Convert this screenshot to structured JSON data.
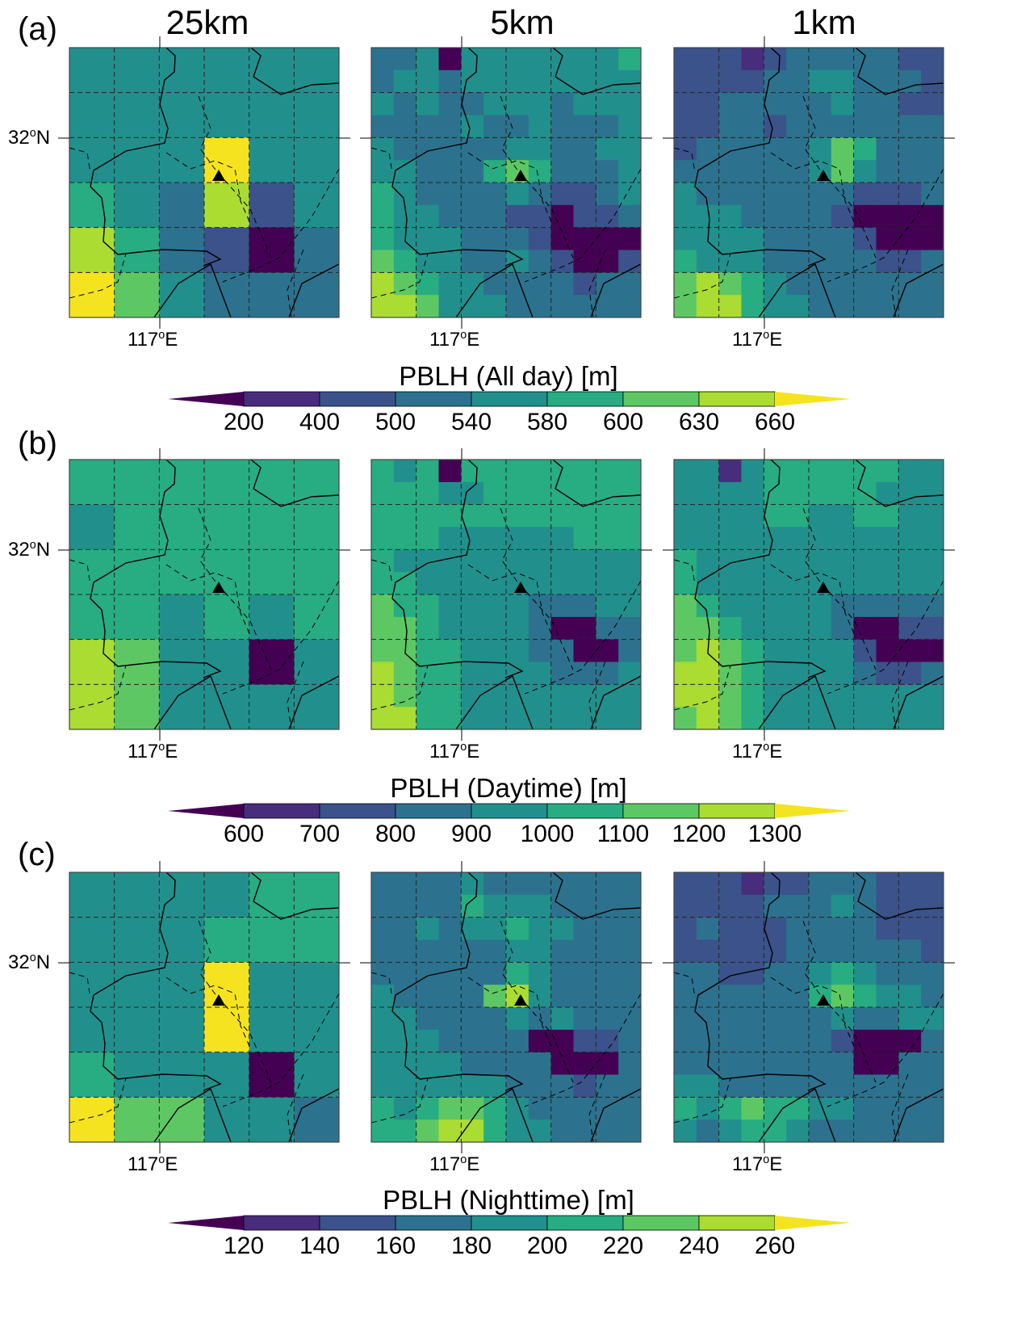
{
  "figure": {
    "row_labels": [
      "(a)",
      "(b)",
      "(c)"
    ],
    "column_titles": [
      "25km",
      "5km",
      "1km"
    ],
    "lat_label": {
      "value": "32",
      "deg": "o",
      "hemi": "N"
    },
    "lon_label": {
      "value": "117",
      "deg": "o",
      "hemi": "E"
    },
    "site_marker": "triangle",
    "colors": [
      "#440154",
      "#472d7b",
      "#3b528b",
      "#2c728e",
      "#21908d",
      "#27ad81",
      "#5dc863",
      "#aadc32",
      "#f5e31f"
    ]
  },
  "colorbars": [
    {
      "title": "PBLH (All day) [m]",
      "ticks": [
        "200",
        "400",
        "500",
        "540",
        "580",
        "600",
        "630",
        "660"
      ]
    },
    {
      "title": "PBLH (Daytime) [m]",
      "ticks": [
        "600",
        "700",
        "800",
        "900",
        "1000",
        "1100",
        "1200",
        "1300"
      ]
    },
    {
      "title": "PBLH (Nighttime) [m]",
      "ticks": [
        "120",
        "140",
        "160",
        "180",
        "200",
        "220",
        "240",
        "260"
      ]
    }
  ],
  "chart_data": [
    {
      "type": "heatmap",
      "row": "(a)",
      "resolution": "25km",
      "grid": [
        [
          4,
          4,
          4,
          4,
          4,
          4
        ],
        [
          4,
          4,
          4,
          4,
          4,
          4
        ],
        [
          4,
          4,
          4,
          8,
          4,
          4
        ],
        [
          5,
          4,
          3,
          7,
          2,
          4
        ],
        [
          7,
          5,
          3,
          2,
          0,
          3
        ],
        [
          8,
          6,
          4,
          3,
          3,
          3
        ]
      ]
    },
    {
      "type": "heatmap",
      "row": "(a)",
      "resolution": "5km",
      "grid": [
        [
          3,
          3,
          4,
          0,
          4,
          4,
          4,
          4,
          4,
          4,
          4,
          5
        ],
        [
          3,
          4,
          4,
          3,
          4,
          4,
          4,
          4,
          4,
          4,
          4,
          4
        ],
        [
          4,
          3,
          4,
          3,
          3,
          4,
          4,
          4,
          3,
          4,
          4,
          4
        ],
        [
          3,
          3,
          3,
          3,
          4,
          3,
          3,
          4,
          3,
          3,
          3,
          4
        ],
        [
          4,
          3,
          3,
          3,
          3,
          3,
          4,
          4,
          3,
          3,
          4,
          4
        ],
        [
          4,
          4,
          3,
          3,
          3,
          5,
          6,
          5,
          3,
          3,
          3,
          4
        ],
        [
          5,
          4,
          3,
          3,
          3,
          3,
          4,
          3,
          2,
          2,
          3,
          4
        ],
        [
          5,
          4,
          4,
          3,
          3,
          3,
          2,
          2,
          0,
          2,
          2,
          3
        ],
        [
          5,
          4,
          4,
          4,
          3,
          3,
          3,
          2,
          0,
          0,
          0,
          0
        ],
        [
          6,
          5,
          4,
          4,
          3,
          3,
          4,
          3,
          2,
          0,
          0,
          2
        ],
        [
          7,
          6,
          5,
          4,
          4,
          3,
          3,
          3,
          3,
          2,
          3,
          3
        ],
        [
          7,
          7,
          6,
          4,
          4,
          4,
          3,
          3,
          3,
          3,
          3,
          3
        ]
      ]
    },
    {
      "type": "heatmap",
      "row": "(a)",
      "resolution": "1km",
      "grid": [
        [
          2,
          2,
          2,
          1,
          2,
          3,
          3,
          3,
          3,
          3,
          2,
          2
        ],
        [
          2,
          2,
          2,
          2,
          3,
          3,
          4,
          4,
          3,
          3,
          3,
          2
        ],
        [
          2,
          2,
          3,
          3,
          3,
          3,
          3,
          4,
          3,
          3,
          2,
          2
        ],
        [
          2,
          2,
          3,
          3,
          2,
          3,
          3,
          3,
          3,
          3,
          3,
          3
        ],
        [
          2,
          3,
          3,
          3,
          3,
          3,
          4,
          6,
          5,
          3,
          3,
          3
        ],
        [
          3,
          3,
          3,
          3,
          3,
          3,
          4,
          6,
          4,
          3,
          3,
          3
        ],
        [
          4,
          3,
          3,
          3,
          3,
          3,
          3,
          3,
          2,
          2,
          2,
          3
        ],
        [
          4,
          4,
          4,
          3,
          3,
          3,
          3,
          2,
          0,
          0,
          0,
          0
        ],
        [
          4,
          4,
          4,
          4,
          3,
          3,
          3,
          3,
          2,
          0,
          0,
          0
        ],
        [
          5,
          4,
          4,
          4,
          3,
          3,
          3,
          3,
          3,
          2,
          2,
          3
        ],
        [
          6,
          7,
          6,
          5,
          4,
          3,
          3,
          3,
          3,
          3,
          3,
          3
        ],
        [
          6,
          7,
          7,
          5,
          4,
          4,
          3,
          3,
          3,
          3,
          3,
          3
        ]
      ]
    },
    {
      "type": "heatmap",
      "row": "(b)",
      "resolution": "25km",
      "grid": [
        [
          5,
          5,
          5,
          5,
          5,
          5
        ],
        [
          4,
          5,
          5,
          5,
          5,
          5
        ],
        [
          5,
          5,
          5,
          5,
          5,
          5
        ],
        [
          5,
          5,
          4,
          5,
          4,
          5
        ],
        [
          7,
          6,
          4,
          4,
          0,
          4
        ],
        [
          7,
          6,
          4,
          4,
          4,
          4
        ]
      ]
    },
    {
      "type": "heatmap",
      "row": "(b)",
      "resolution": "5km",
      "grid": [
        [
          5,
          4,
          5,
          0,
          5,
          5,
          5,
          5,
          5,
          5,
          5,
          5
        ],
        [
          5,
          5,
          5,
          4,
          4,
          5,
          5,
          5,
          5,
          5,
          5,
          5
        ],
        [
          5,
          5,
          5,
          5,
          5,
          5,
          5,
          5,
          5,
          5,
          5,
          5
        ],
        [
          5,
          5,
          5,
          4,
          4,
          4,
          4,
          4,
          4,
          5,
          5,
          5
        ],
        [
          5,
          4,
          4,
          4,
          4,
          4,
          4,
          4,
          4,
          4,
          4,
          4
        ],
        [
          5,
          5,
          4,
          4,
          4,
          4,
          4,
          4,
          4,
          4,
          4,
          4
        ],
        [
          6,
          5,
          5,
          4,
          4,
          4,
          4,
          3,
          3,
          3,
          4,
          4
        ],
        [
          6,
          6,
          5,
          4,
          4,
          4,
          4,
          3,
          0,
          0,
          3,
          3
        ],
        [
          6,
          6,
          5,
          5,
          4,
          4,
          4,
          3,
          3,
          0,
          0,
          3
        ],
        [
          7,
          6,
          5,
          5,
          4,
          4,
          4,
          4,
          3,
          3,
          3,
          4
        ],
        [
          7,
          6,
          5,
          5,
          4,
          4,
          4,
          4,
          4,
          4,
          4,
          4
        ],
        [
          7,
          7,
          5,
          5,
          4,
          4,
          4,
          4,
          4,
          4,
          4,
          4
        ]
      ]
    },
    {
      "type": "heatmap",
      "row": "(b)",
      "resolution": "1km",
      "grid": [
        [
          4,
          4,
          1,
          4,
          5,
          5,
          5,
          5,
          5,
          5,
          4,
          4
        ],
        [
          4,
          4,
          4,
          4,
          5,
          5,
          5,
          5,
          5,
          4,
          4,
          4
        ],
        [
          4,
          4,
          4,
          4,
          5,
          5,
          4,
          4,
          5,
          5,
          4,
          4
        ],
        [
          4,
          4,
          4,
          4,
          4,
          4,
          4,
          4,
          4,
          4,
          4,
          4
        ],
        [
          5,
          4,
          4,
          4,
          4,
          4,
          4,
          4,
          4,
          4,
          4,
          4
        ],
        [
          5,
          4,
          4,
          4,
          4,
          4,
          4,
          4,
          4,
          4,
          4,
          4
        ],
        [
          6,
          5,
          4,
          4,
          4,
          4,
          4,
          3,
          3,
          3,
          3,
          3
        ],
        [
          6,
          6,
          5,
          4,
          4,
          4,
          4,
          3,
          0,
          0,
          2,
          2
        ],
        [
          6,
          7,
          6,
          5,
          4,
          4,
          4,
          4,
          2,
          0,
          0,
          0
        ],
        [
          7,
          7,
          6,
          5,
          4,
          4,
          4,
          4,
          3,
          2,
          2,
          3
        ],
        [
          7,
          7,
          6,
          5,
          4,
          4,
          4,
          4,
          4,
          4,
          4,
          4
        ],
        [
          6,
          7,
          6,
          5,
          4,
          4,
          4,
          4,
          4,
          4,
          4,
          4
        ]
      ]
    },
    {
      "type": "heatmap",
      "row": "(c)",
      "resolution": "25km",
      "grid": [
        [
          4,
          4,
          4,
          4,
          5,
          5
        ],
        [
          4,
          4,
          4,
          5,
          5,
          5
        ],
        [
          4,
          4,
          4,
          8,
          4,
          4
        ],
        [
          4,
          4,
          4,
          8,
          4,
          4
        ],
        [
          5,
          4,
          4,
          4,
          0,
          4
        ],
        [
          8,
          6,
          6,
          4,
          4,
          3
        ]
      ]
    },
    {
      "type": "heatmap",
      "row": "(c)",
      "resolution": "5km",
      "grid": [
        [
          3,
          3,
          3,
          3,
          4,
          3,
          3,
          3,
          3,
          3,
          3,
          3
        ],
        [
          3,
          3,
          3,
          3,
          5,
          4,
          4,
          4,
          3,
          3,
          3,
          3
        ],
        [
          3,
          3,
          4,
          3,
          4,
          4,
          5,
          4,
          4,
          3,
          3,
          3
        ],
        [
          3,
          3,
          3,
          3,
          3,
          3,
          4,
          4,
          3,
          3,
          3,
          3
        ],
        [
          3,
          3,
          3,
          3,
          3,
          3,
          5,
          4,
          3,
          3,
          3,
          3
        ],
        [
          4,
          3,
          3,
          3,
          3,
          6,
          7,
          4,
          3,
          3,
          3,
          3
        ],
        [
          4,
          4,
          3,
          3,
          3,
          3,
          4,
          3,
          4,
          3,
          3,
          3
        ],
        [
          4,
          4,
          4,
          3,
          3,
          3,
          3,
          0,
          0,
          2,
          2,
          3
        ],
        [
          4,
          4,
          4,
          4,
          3,
          3,
          3,
          3,
          0,
          0,
          0,
          3
        ],
        [
          4,
          4,
          4,
          4,
          4,
          4,
          3,
          3,
          3,
          2,
          3,
          3
        ],
        [
          5,
          4,
          5,
          6,
          6,
          5,
          4,
          3,
          3,
          3,
          3,
          3
        ],
        [
          5,
          5,
          6,
          7,
          7,
          5,
          4,
          4,
          3,
          3,
          3,
          3
        ]
      ]
    },
    {
      "type": "heatmap",
      "row": "(c)",
      "resolution": "1km",
      "grid": [
        [
          2,
          2,
          2,
          1,
          2,
          2,
          3,
          3,
          3,
          2,
          2,
          2
        ],
        [
          2,
          2,
          2,
          2,
          3,
          3,
          3,
          4,
          3,
          2,
          2,
          2
        ],
        [
          2,
          3,
          2,
          2,
          2,
          3,
          3,
          3,
          3,
          2,
          2,
          2
        ],
        [
          2,
          2,
          2,
          2,
          2,
          3,
          3,
          3,
          3,
          3,
          3,
          2
        ],
        [
          3,
          3,
          2,
          2,
          3,
          3,
          4,
          5,
          4,
          3,
          3,
          3
        ],
        [
          3,
          3,
          3,
          3,
          3,
          3,
          5,
          6,
          5,
          4,
          4,
          3
        ],
        [
          3,
          3,
          3,
          3,
          3,
          3,
          3,
          4,
          3,
          3,
          4,
          4
        ],
        [
          3,
          3,
          3,
          3,
          3,
          3,
          3,
          2,
          0,
          0,
          0,
          3
        ],
        [
          3,
          3,
          3,
          3,
          3,
          3,
          3,
          3,
          0,
          0,
          3,
          3
        ],
        [
          4,
          4,
          3,
          3,
          3,
          3,
          3,
          3,
          3,
          3,
          3,
          3
        ],
        [
          5,
          4,
          5,
          6,
          5,
          5,
          4,
          4,
          3,
          3,
          3,
          3
        ],
        [
          4,
          3,
          4,
          5,
          5,
          4,
          3,
          3,
          3,
          3,
          3,
          3
        ]
      ]
    }
  ]
}
